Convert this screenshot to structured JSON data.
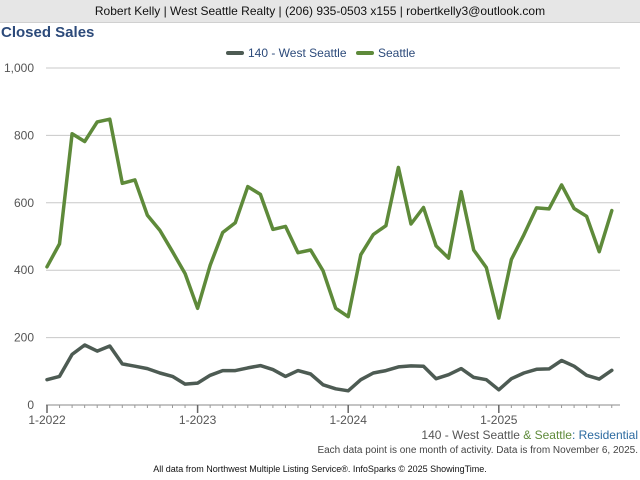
{
  "header": {
    "contact": "Robert Kelly | West Seattle Realty | (206) 935-0503 x155 | robertkelly3@outlook.com"
  },
  "chart_data": {
    "type": "line",
    "title": "Closed Sales",
    "x_tick_labels": [
      "1-2022",
      "1-2023",
      "1-2024",
      "1-2025"
    ],
    "x_tick_indices": [
      0,
      12,
      24,
      36
    ],
    "n_points": 46,
    "ylim": [
      0,
      1000
    ],
    "y_ticks": [
      0,
      200,
      400,
      600,
      800,
      1000
    ],
    "y_tick_labels": [
      "0",
      "200",
      "400",
      "600",
      "800",
      "1,000"
    ],
    "grid": true,
    "legend_position": "top-center",
    "series": [
      {
        "name": "140 - West Seattle",
        "color": "#4d5b53",
        "values": [
          75,
          85,
          150,
          178,
          160,
          175,
          122,
          115,
          108,
          95,
          85,
          62,
          65,
          88,
          102,
          102,
          110,
          117,
          105,
          85,
          102,
          92,
          60,
          48,
          42,
          75,
          95,
          102,
          113,
          116,
          115,
          78,
          90,
          108,
          82,
          75,
          45,
          78,
          95,
          106,
          107,
          132,
          115,
          88,
          77,
          103
        ]
      },
      {
        "name": "Seattle",
        "color": "#5e8a3a",
        "values": [
          410,
          478,
          805,
          782,
          840,
          848,
          658,
          668,
          563,
          518,
          455,
          390,
          287,
          415,
          512,
          541,
          648,
          625,
          521,
          530,
          452,
          460,
          398,
          287,
          262,
          446,
          506,
          532,
          705,
          537,
          586,
          472,
          436,
          633,
          460,
          408,
          258,
          432,
          505,
          585,
          582,
          653,
          583,
          560,
          455,
          577
        ]
      }
    ]
  },
  "footer": {
    "series_label_a": "140 - West Seattle",
    "series_label_b": "& Seattle",
    "series_label_c": ": Residential",
    "note": "Each data point is one month of activity. Data is from November 6, 2025.",
    "source": "All data from Northwest Multiple Listing Service®. InfoSparks © 2025 ShowingTime."
  }
}
